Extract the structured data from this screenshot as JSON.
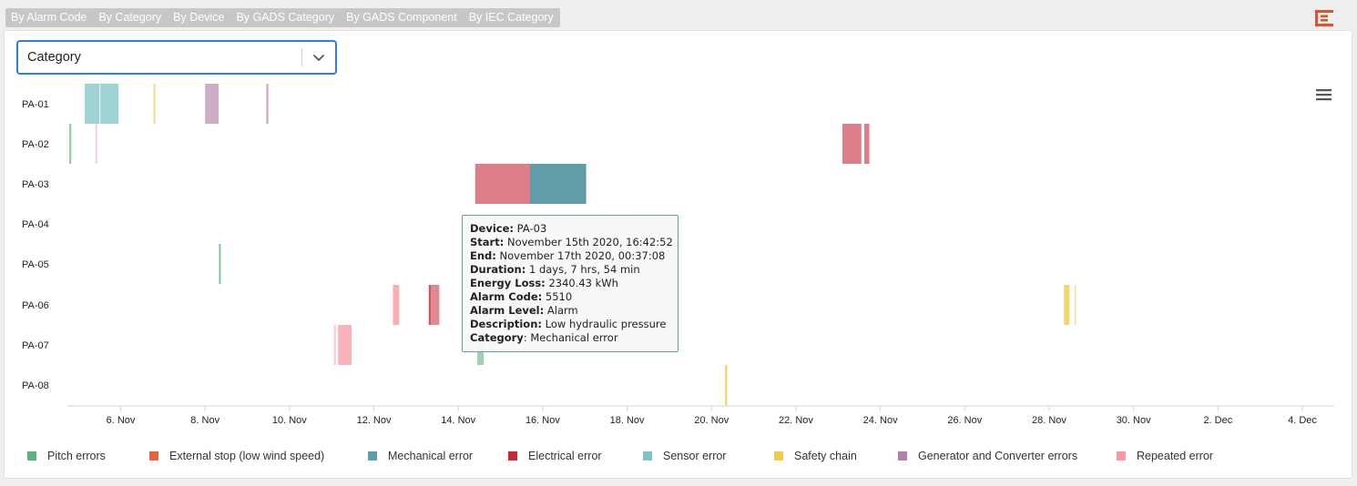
{
  "tabs": [
    {
      "label": "By Alarm Code"
    },
    {
      "label": "By Category"
    },
    {
      "label": "By Device"
    },
    {
      "label": "By GADS Category"
    },
    {
      "label": "By GADS Component"
    },
    {
      "label": "By IEC Category"
    }
  ],
  "select": {
    "value": "Category"
  },
  "colors": {
    "Pitch errors": "#5db37f",
    "External stop (low wind speed)": "#e3643d",
    "Mechanical error": "#5f9ea8",
    "Electrical error": "#c8283a",
    "Sensor error": "#7fc3c6",
    "Safety chain": "#edcc4c",
    "Generator and Converter errors": "#b47fa8",
    "Repeated error": "#f89aa3"
  },
  "tooltip": {
    "device_label": "Device",
    "device": "PA-03",
    "start_label": "Start",
    "start": "November 15th 2020, 16:42:52",
    "end_label": "End",
    "end": "November 17th 2020, 00:37:08",
    "duration_label": "Duration",
    "duration": "1 days, 7 hrs, 54 min",
    "energy_label": "Energy Loss",
    "energy": "2340.43 kWh",
    "code_label": "Alarm Code",
    "code": "5510",
    "level_label": "Alarm Level",
    "level": "Alarm",
    "desc_label": "Description",
    "desc": "Low hydraulic pressure",
    "cat_label": "Category",
    "cat": "Mechanical error"
  },
  "chart_data": {
    "type": "timeline",
    "x_ticks": [
      "6. Nov",
      "8. Nov",
      "10. Nov",
      "12. Nov",
      "14. Nov",
      "16. Nov",
      "18. Nov",
      "20. Nov",
      "22. Nov",
      "24. Nov",
      "26. Nov",
      "28. Nov",
      "30. Nov",
      "2. Dec",
      "4. Dec"
    ],
    "x_range_days": [
      4.78,
      4.73
    ],
    "devices": [
      "PA-01",
      "PA-02",
      "PA-03",
      "PA-04",
      "PA-05",
      "PA-06",
      "PA-07",
      "PA-08"
    ],
    "legend": [
      "Pitch errors",
      "External stop (low wind speed)",
      "Mechanical error",
      "Electrical error",
      "Sensor error",
      "Safety chain",
      "Generator and Converter errors",
      "Repeated error"
    ],
    "bars": [
      {
        "device": "PA-01",
        "start": 5.15,
        "end": 5.5,
        "category": "Sensor error",
        "opacity": 0.75
      },
      {
        "device": "PA-01",
        "start": 5.52,
        "end": 5.95,
        "category": "Sensor error",
        "opacity": 0.75
      },
      {
        "device": "PA-01",
        "start": 6.78,
        "end": 6.82,
        "category": "Safety chain",
        "opacity": 0.7
      },
      {
        "device": "PA-01",
        "start": 8.0,
        "end": 8.32,
        "category": "Generator and Converter errors",
        "opacity": 0.65
      },
      {
        "device": "PA-01",
        "start": 9.45,
        "end": 9.5,
        "category": "Generator and Converter errors",
        "opacity": 0.65
      },
      {
        "device": "PA-02",
        "start": 4.78,
        "end": 4.83,
        "category": "Pitch errors",
        "opacity": 0.65
      },
      {
        "device": "PA-02",
        "start": 5.4,
        "end": 5.44,
        "category": "Repeated error",
        "opacity": 0.5
      },
      {
        "device": "PA-02",
        "start": 23.1,
        "end": 23.55,
        "category": "Electrical error",
        "opacity": 0.6
      },
      {
        "device": "PA-02",
        "start": 23.62,
        "end": 23.74,
        "category": "Electrical error",
        "opacity": 0.6
      },
      {
        "device": "PA-03",
        "start": 14.4,
        "end": 15.7,
        "category": "Electrical error",
        "opacity": 0.6
      },
      {
        "device": "PA-03",
        "start": 15.7,
        "end": 17.03,
        "category": "Mechanical error",
        "opacity": 1
      },
      {
        "device": "PA-05",
        "start": 8.33,
        "end": 8.37,
        "category": "Pitch errors",
        "opacity": 0.8
      },
      {
        "device": "PA-06",
        "start": 12.45,
        "end": 12.6,
        "category": "Repeated error",
        "opacity": 0.8
      },
      {
        "device": "PA-06",
        "start": 13.3,
        "end": 13.35,
        "category": "Electrical error",
        "opacity": 0.8
      },
      {
        "device": "PA-06",
        "start": 13.35,
        "end": 13.55,
        "category": "Electrical error",
        "opacity": 0.55
      },
      {
        "device": "PA-06",
        "start": 28.35,
        "end": 28.48,
        "category": "Safety chain",
        "opacity": 0.8
      },
      {
        "device": "PA-06",
        "start": 28.6,
        "end": 28.63,
        "category": "Safety chain",
        "opacity": 0.6
      },
      {
        "device": "PA-07",
        "start": 11.05,
        "end": 11.1,
        "category": "Repeated error",
        "opacity": 0.5
      },
      {
        "device": "PA-07",
        "start": 11.15,
        "end": 11.47,
        "category": "Repeated error",
        "opacity": 0.75
      },
      {
        "device": "PA-07",
        "start": 14.45,
        "end": 14.6,
        "category": "Pitch errors",
        "opacity": 0.6
      },
      {
        "device": "PA-08",
        "start": 20.32,
        "end": 20.37,
        "category": "Safety chain",
        "opacity": 0.8
      }
    ]
  }
}
